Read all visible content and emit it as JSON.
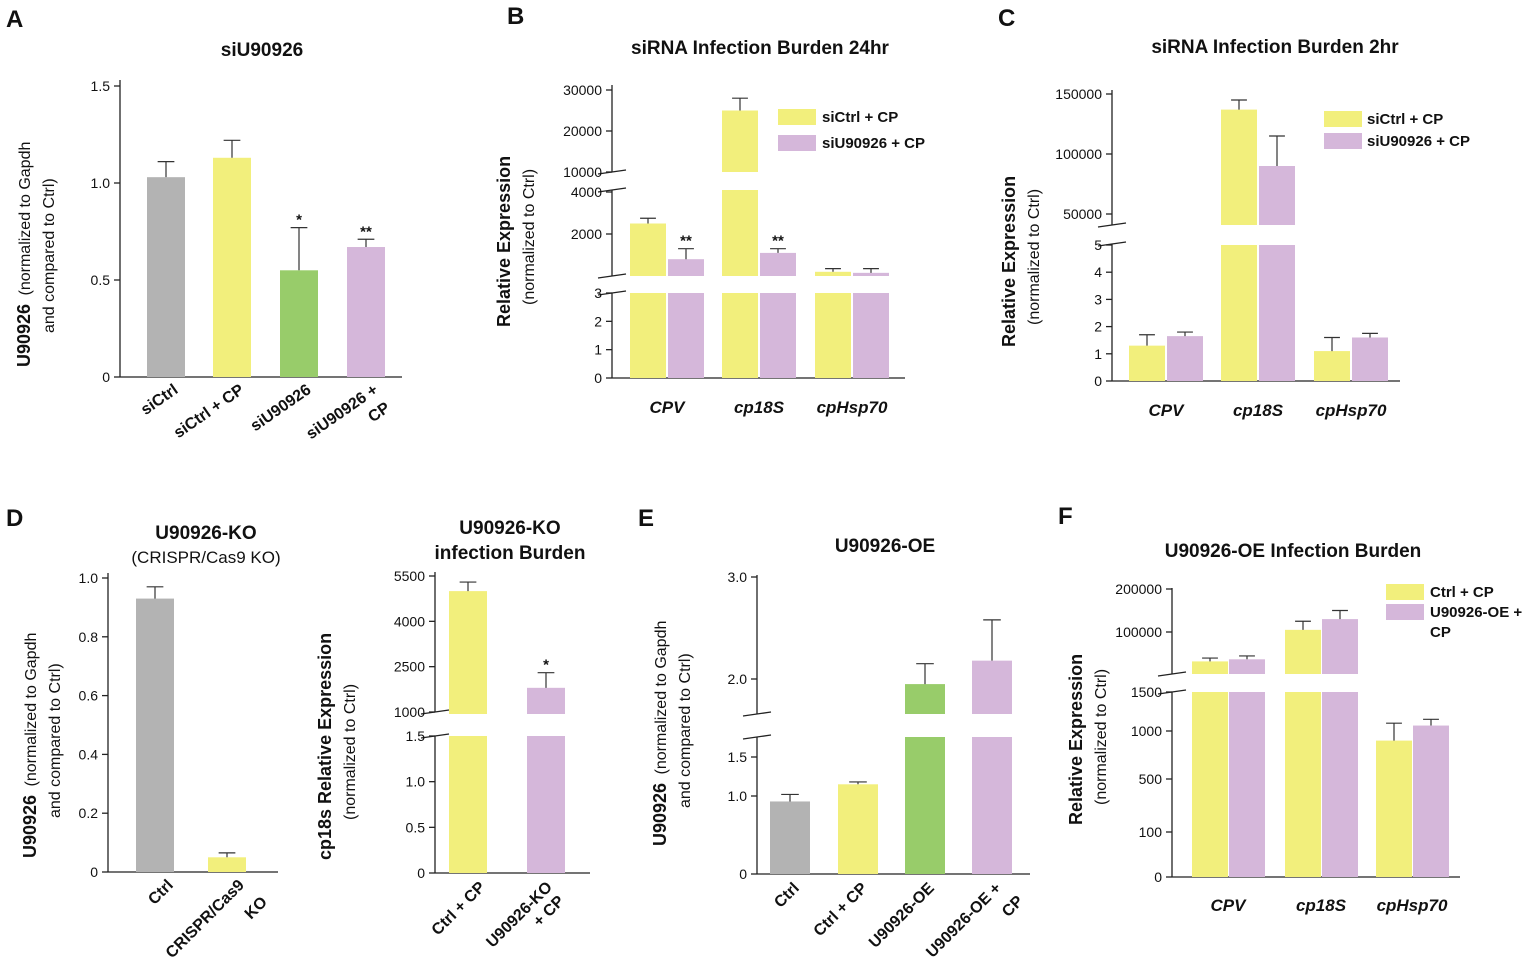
{
  "colors": {
    "grey": "#b3b3b3",
    "yellow": "#f2ef7c",
    "green": "#98cc6a",
    "purple": "#d5b7da",
    "axis": "#222222"
  },
  "panel_letters": [
    "A",
    "B",
    "C",
    "D",
    "E",
    "F"
  ],
  "chart_data": [
    {
      "id": "A",
      "type": "bar",
      "title": "siU90926",
      "ylabel_bold": "U90926",
      "ylabel_rest": "(normalized to Gapdh",
      "ylabel_line2": "and compared to Ctrl)",
      "yticks": [
        "0",
        "0.5",
        "1.0",
        "1.5"
      ],
      "ylim": [
        0,
        1.5
      ],
      "categories": [
        "siCtrl",
        "siCtrl + CP",
        "siU90926",
        "siU90926 +"
      ],
      "category_line2": [
        "",
        "",
        "",
        "CP"
      ],
      "values": [
        1.03,
        1.13,
        0.55,
        0.67
      ],
      "errors": [
        0.08,
        0.09,
        0.22,
        0.04
      ],
      "colors": [
        "grey",
        "yellow",
        "green",
        "purple"
      ],
      "significance": [
        "",
        "",
        "*",
        "**"
      ]
    },
    {
      "id": "B",
      "type": "bar",
      "title": "siRNA Infection Burden 24hr",
      "ylabel_bold": "Relative Expression",
      "ylabel_norm": "(normalized to Ctrl)",
      "yticks_top": [
        "10000",
        "20000",
        "30000"
      ],
      "yticks_mid": [
        "2000",
        "4000"
      ],
      "yticks_low": [
        "0",
        "1",
        "2",
        "3"
      ],
      "categories": [
        "CPV",
        "cp18S",
        "cpHsp70"
      ],
      "legend": [
        "siCtrl + CP",
        "siU90926 + CP"
      ],
      "series": [
        {
          "name": "siCtrl + CP",
          "values": [
            2500,
            25000,
            200
          ],
          "errors": [
            250,
            3000,
            150
          ]
        },
        {
          "name": "siU90926 + CP",
          "values": [
            800,
            1100,
            150
          ],
          "errors": [
            500,
            200,
            200
          ]
        }
      ],
      "significance": [
        "**",
        "**",
        ""
      ]
    },
    {
      "id": "C",
      "type": "bar",
      "title": "siRNA Infection Burden 2hr",
      "ylabel_bold": "Relative Expression",
      "ylabel_norm": "(normalized to Ctrl)",
      "yticks_top": [
        "50000",
        "100000",
        "150000"
      ],
      "yticks_low": [
        "0",
        "1",
        "2",
        "3",
        "4",
        "5"
      ],
      "categories": [
        "CPV",
        "cp18S",
        "cpHsp70"
      ],
      "legend": [
        "siCtrl + CP",
        "siU90926 + CP"
      ],
      "series": [
        {
          "name": "siCtrl + CP",
          "values": [
            1.3,
            137000,
            1.1
          ],
          "errors": [
            0.4,
            8000,
            0.5
          ]
        },
        {
          "name": "siU90926 + CP",
          "values": [
            1.65,
            90000,
            1.6
          ],
          "errors": [
            0.15,
            25000,
            0.15
          ]
        }
      ]
    },
    {
      "id": "D1",
      "type": "bar",
      "title": "U90926-KO",
      "subtitle": "(CRISPR/Cas9 KO)",
      "ylabel_bold": "U90926",
      "ylabel_rest": "(normalized to Gapdh",
      "ylabel_line2": "and compared to Ctrl)",
      "yticks": [
        "0",
        "0.2",
        "0.4",
        "0.6",
        "0.8",
        "1.0"
      ],
      "ylim": [
        0,
        1.0
      ],
      "categories": [
        "Ctrl",
        "CRISPR/Cas9"
      ],
      "category_line2": [
        "",
        "KO"
      ],
      "values": [
        0.93,
        0.05
      ],
      "errors": [
        0.04,
        0.015
      ],
      "colors": [
        "grey",
        "yellow"
      ]
    },
    {
      "id": "D2",
      "type": "bar",
      "title": "U90926-KO",
      "title_line2": "infection Burden",
      "ylabel_bold": "cp18s Relative Expression",
      "ylabel_norm": "(normalized to Ctrl)",
      "yticks_top": [
        "1000",
        "2500",
        "4000",
        "5500"
      ],
      "yticks_low": [
        "0",
        "0.5",
        "1.0",
        "1.5"
      ],
      "categories": [
        "Ctrl + CP",
        "U90926-KO"
      ],
      "category_line2": [
        "",
        "+ CP"
      ],
      "values": [
        5000,
        1800
      ],
      "errors": [
        300,
        500
      ],
      "colors": [
        "yellow",
        "purple"
      ],
      "significance": [
        "",
        "*"
      ]
    },
    {
      "id": "E",
      "type": "bar",
      "title": "U90926-OE",
      "ylabel_bold": "U90926",
      "ylabel_rest": "(normalized to Gapdh",
      "ylabel_line2": "and compared to Ctrl)",
      "yticks_top": [
        "2.0",
        "3.0"
      ],
      "yticks_low": [
        "0",
        "1.0",
        "1.5"
      ],
      "categories": [
        "Ctrl",
        "Ctrl + CP",
        "U90926-OE",
        "U90926-OE +"
      ],
      "category_line2": [
        "",
        "",
        "",
        "CP"
      ],
      "values": [
        0.93,
        1.15,
        1.95,
        2.18
      ],
      "errors": [
        0.09,
        0.03,
        0.2,
        0.4
      ],
      "colors": [
        "grey",
        "yellow",
        "green",
        "purple"
      ]
    },
    {
      "id": "F",
      "type": "bar",
      "title": "U90926-OE Infection Burden",
      "ylabel_bold": "Relative Expression",
      "ylabel_norm": "(normalized to Ctrl)",
      "yticks_top": [
        "100000",
        "200000"
      ],
      "yticks_low": [
        "0",
        "100",
        "500",
        "1000",
        "1500"
      ],
      "categories": [
        "CPV",
        "cp18S",
        "cpHsp70"
      ],
      "legend": [
        "Ctrl + CP",
        "U90926-OE +"
      ],
      "legend_line2": [
        "",
        "CP"
      ],
      "series": [
        {
          "name": "Ctrl + CP",
          "values": [
            30000,
            105000,
            900
          ],
          "errors": [
            8000,
            20000,
            200
          ]
        },
        {
          "name": "U90926-OE + CP",
          "values": [
            35000,
            130000,
            1070
          ],
          "errors": [
            8000,
            20000,
            80
          ]
        }
      ]
    }
  ]
}
